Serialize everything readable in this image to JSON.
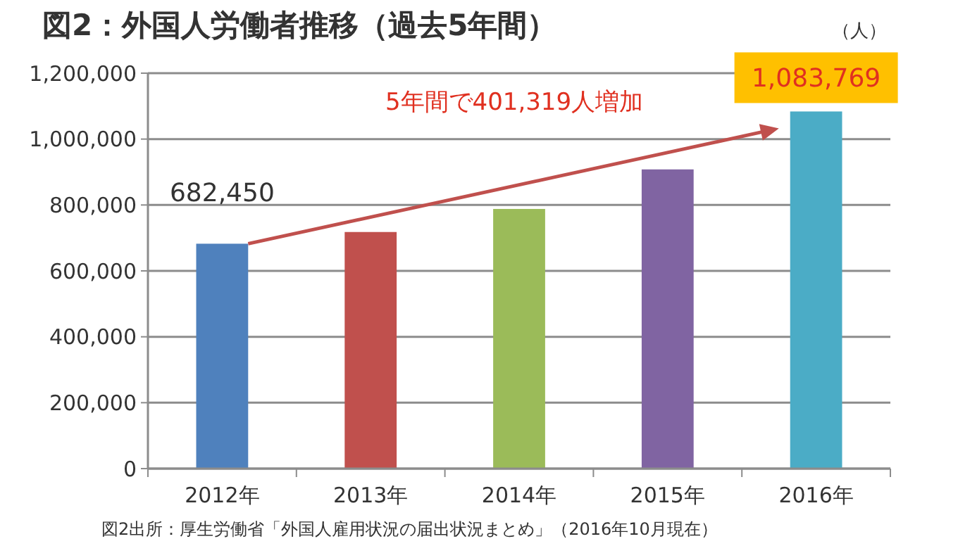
{
  "chart_data": {
    "type": "bar",
    "title": "図2：外国人労働者推移（過去5年間）",
    "ylabel": "（人）",
    "categories": [
      "2012年",
      "2013年",
      "2014年",
      "2015年",
      "2016年"
    ],
    "values": [
      682450,
      718000,
      788000,
      908000,
      1083769
    ],
    "colors": [
      "#4f81bd",
      "#c0504d",
      "#9bbb59",
      "#8064a2",
      "#4bacc6"
    ],
    "value_labels": [
      "682,450",
      null,
      null,
      null,
      "1,083,769"
    ],
    "ylim": [
      0,
      1200000
    ],
    "yticks": [
      {
        "value": 0,
        "label": "0"
      },
      {
        "value": 200000,
        "label": "200,000"
      },
      {
        "value": 400000,
        "label": "400,000"
      },
      {
        "value": 600000,
        "label": "600,000"
      },
      {
        "value": 800000,
        "label": "800,000"
      },
      {
        "value": 1000000,
        "label": "1,000,000"
      },
      {
        "value": 1200000,
        "label": "1,200,000"
      }
    ],
    "grid": "y",
    "annotations": [
      "5年間で401,319人増加",
      "図2出所：厚生労働省「外国人雇用状況の届出状況まとめ」（2016年10月現在）"
    ]
  }
}
